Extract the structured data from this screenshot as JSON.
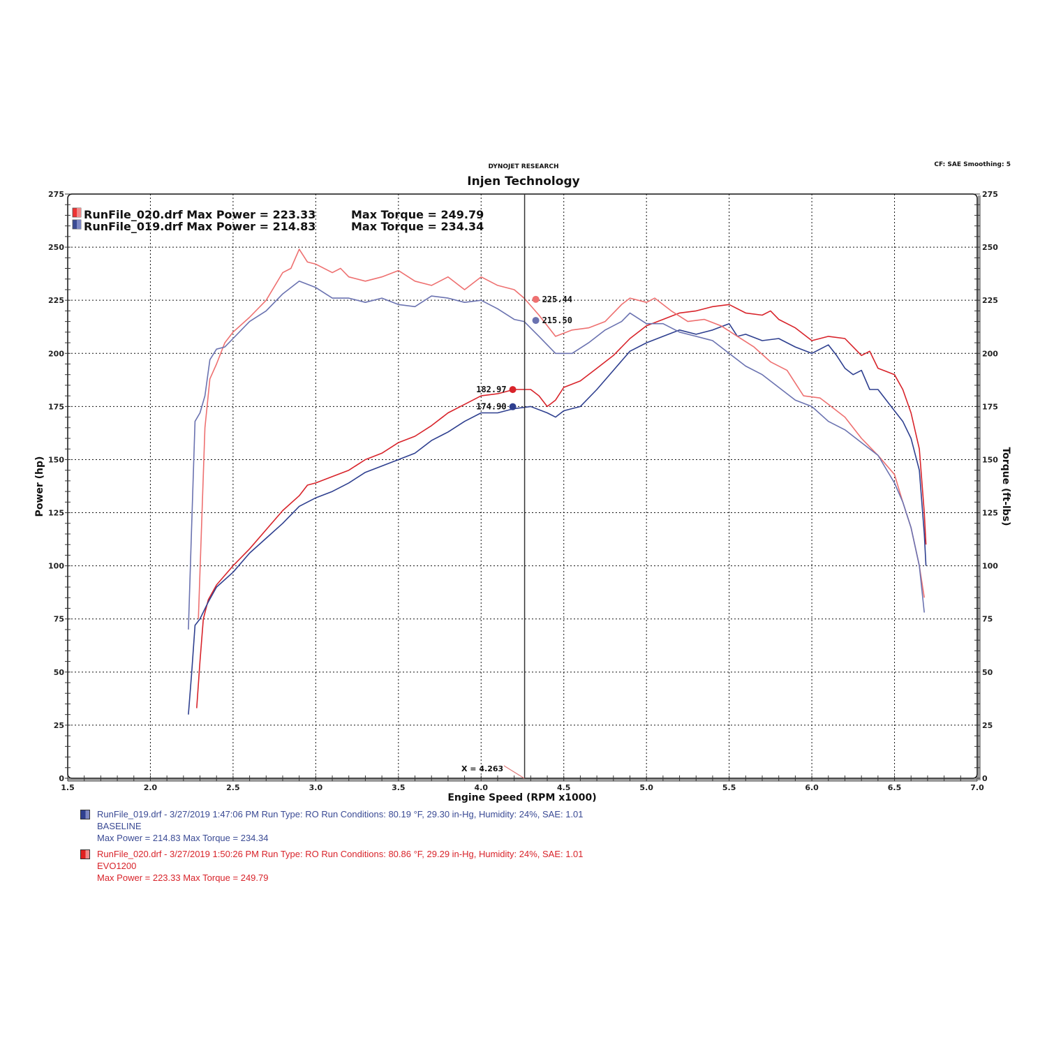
{
  "header": {
    "subtitle": "DYNOJET RESEARCH",
    "title": "Injen Technology",
    "cf_info": "CF: SAE  Smoothing: 5"
  },
  "colors": {
    "red_power": "#d8232a",
    "red_torque": "#ee7070",
    "blue_power": "#2e3f8f",
    "blue_torque": "#6a72b0",
    "grid": "#111111",
    "axis": "#555555"
  },
  "legend_top": [
    {
      "file": "RunFile_020.drf",
      "text": "RunFile_020.drf Max Power = 223.33",
      "torque_text": "Max Torque = 249.79",
      "color": "#d8232a"
    },
    {
      "file": "RunFile_019.drf",
      "text": "RunFile_019.drf Max Power = 214.83",
      "torque_text": "Max Torque = 234.34",
      "color": "#3a4a94"
    }
  ],
  "cursor": {
    "label": "X = 4.263",
    "x": 4.263
  },
  "markers": [
    {
      "label": "225.44",
      "value": 225.44,
      "series": "EVO1200 Torque",
      "color": "#ee7070",
      "side": "right"
    },
    {
      "label": "215.50",
      "value": 215.5,
      "series": "BASELINE Torque",
      "color": "#6a72b0",
      "side": "right"
    },
    {
      "label": "182.97",
      "value": 182.97,
      "series": "EVO1200 Power",
      "color": "#d8232a",
      "side": "left"
    },
    {
      "label": "174.90",
      "value": 174.9,
      "series": "BASELINE Power",
      "color": "#2e3f8f",
      "side": "left"
    }
  ],
  "run_notes": [
    {
      "line1": "RunFile_019.drf - 3/27/2019 1:47:06 PM  Run Type: RO  Run Conditions: 80.19 °F, 29.30 in-Hg,  Humidity:  24%, SAE: 1.01",
      "line2": "BASELINE",
      "line3": "Max Power = 214.83  Max Torque = 234.34",
      "color": "blue"
    },
    {
      "line1": "RunFile_020.drf - 3/27/2019 1:50:26 PM  Run Type: RO  Run Conditions: 80.86 °F, 29.29 in-Hg,  Humidity:  24%, SAE: 1.01",
      "line2": "EVO1200",
      "line3": "Max Power = 223.33  Max Torque = 249.79",
      "color": "red"
    }
  ],
  "chart_data": {
    "type": "line",
    "title": "Injen Technology",
    "subtitle": "DYNOJET RESEARCH",
    "xlabel": "Engine Speed (RPM x1000)",
    "ylabel": "Power (hp)",
    "ylabel_right": "Torque (ft-lbs)",
    "xlim": [
      1.5,
      7.0
    ],
    "ylim": [
      0,
      275
    ],
    "xticks": [
      "1.5",
      "2.0",
      "2.5",
      "3.0",
      "3.5",
      "4.0",
      "4.5",
      "5.0",
      "5.5",
      "6.0",
      "6.5",
      "7.0"
    ],
    "yticks": [
      "0",
      "25",
      "50",
      "75",
      "100",
      "125",
      "150",
      "175",
      "200",
      "225",
      "250",
      "275"
    ],
    "grid": true,
    "legend_position": "top-left",
    "series": [
      {
        "name": "RunFile_020.drf EVO1200 Power (hp)",
        "color": "#d8232a",
        "points": [
          [
            2.28,
            33
          ],
          [
            2.3,
            55
          ],
          [
            2.32,
            75
          ],
          [
            2.35,
            84
          ],
          [
            2.4,
            91
          ],
          [
            2.5,
            100
          ],
          [
            2.6,
            108
          ],
          [
            2.7,
            117
          ],
          [
            2.8,
            126
          ],
          [
            2.9,
            133
          ],
          [
            2.95,
            138
          ],
          [
            3.0,
            139
          ],
          [
            3.1,
            142
          ],
          [
            3.2,
            145
          ],
          [
            3.3,
            150
          ],
          [
            3.4,
            153
          ],
          [
            3.5,
            158
          ],
          [
            3.6,
            161
          ],
          [
            3.7,
            166
          ],
          [
            3.8,
            172
          ],
          [
            3.9,
            176
          ],
          [
            4.0,
            180
          ],
          [
            4.1,
            181
          ],
          [
            4.2,
            183
          ],
          [
            4.3,
            183
          ],
          [
            4.35,
            180
          ],
          [
            4.4,
            175
          ],
          [
            4.45,
            178
          ],
          [
            4.5,
            184
          ],
          [
            4.6,
            187
          ],
          [
            4.7,
            193
          ],
          [
            4.8,
            199
          ],
          [
            4.9,
            207
          ],
          [
            5.0,
            213
          ],
          [
            5.1,
            216
          ],
          [
            5.2,
            219
          ],
          [
            5.3,
            220
          ],
          [
            5.4,
            222
          ],
          [
            5.5,
            223
          ],
          [
            5.6,
            219
          ],
          [
            5.7,
            218
          ],
          [
            5.75,
            220
          ],
          [
            5.8,
            216
          ],
          [
            5.9,
            212
          ],
          [
            6.0,
            206
          ],
          [
            6.1,
            208
          ],
          [
            6.2,
            207
          ],
          [
            6.25,
            203
          ],
          [
            6.3,
            199
          ],
          [
            6.35,
            201
          ],
          [
            6.4,
            193
          ],
          [
            6.5,
            190
          ],
          [
            6.55,
            183
          ],
          [
            6.6,
            172
          ],
          [
            6.65,
            155
          ],
          [
            6.68,
            125
          ],
          [
            6.69,
            110
          ]
        ]
      },
      {
        "name": "RunFile_019.drf BASELINE Power (hp)",
        "color": "#2e3f8f",
        "points": [
          [
            2.23,
            30
          ],
          [
            2.25,
            50
          ],
          [
            2.27,
            72
          ],
          [
            2.3,
            75
          ],
          [
            2.35,
            83
          ],
          [
            2.4,
            90
          ],
          [
            2.5,
            97
          ],
          [
            2.6,
            106
          ],
          [
            2.7,
            113
          ],
          [
            2.8,
            120
          ],
          [
            2.9,
            128
          ],
          [
            3.0,
            132
          ],
          [
            3.1,
            135
          ],
          [
            3.2,
            139
          ],
          [
            3.3,
            144
          ],
          [
            3.4,
            147
          ],
          [
            3.5,
            150
          ],
          [
            3.6,
            153
          ],
          [
            3.7,
            159
          ],
          [
            3.8,
            163
          ],
          [
            3.9,
            168
          ],
          [
            4.0,
            172
          ],
          [
            4.1,
            172
          ],
          [
            4.2,
            174
          ],
          [
            4.3,
            175
          ],
          [
            4.4,
            172
          ],
          [
            4.45,
            170
          ],
          [
            4.5,
            173
          ],
          [
            4.6,
            175
          ],
          [
            4.7,
            183
          ],
          [
            4.8,
            192
          ],
          [
            4.9,
            201
          ],
          [
            5.0,
            205
          ],
          [
            5.1,
            208
          ],
          [
            5.2,
            211
          ],
          [
            5.3,
            209
          ],
          [
            5.4,
            211
          ],
          [
            5.5,
            214
          ],
          [
            5.55,
            208
          ],
          [
            5.6,
            209
          ],
          [
            5.7,
            206
          ],
          [
            5.8,
            207
          ],
          [
            5.9,
            203
          ],
          [
            6.0,
            200
          ],
          [
            6.05,
            202
          ],
          [
            6.1,
            204
          ],
          [
            6.15,
            199
          ],
          [
            6.2,
            193
          ],
          [
            6.25,
            190
          ],
          [
            6.3,
            192
          ],
          [
            6.35,
            183
          ],
          [
            6.4,
            183
          ],
          [
            6.5,
            173
          ],
          [
            6.55,
            168
          ],
          [
            6.6,
            160
          ],
          [
            6.65,
            145
          ],
          [
            6.68,
            115
          ],
          [
            6.69,
            100
          ]
        ]
      },
      {
        "name": "RunFile_020.drf EVO1200 Torque (ft-lbs)",
        "color": "#ee7070",
        "points": [
          [
            2.29,
            75
          ],
          [
            2.31,
            120
          ],
          [
            2.33,
            165
          ],
          [
            2.36,
            188
          ],
          [
            2.4,
            195
          ],
          [
            2.45,
            205
          ],
          [
            2.5,
            210
          ],
          [
            2.6,
            217
          ],
          [
            2.7,
            225
          ],
          [
            2.8,
            238
          ],
          [
            2.85,
            240
          ],
          [
            2.9,
            249
          ],
          [
            2.95,
            243
          ],
          [
            3.0,
            242
          ],
          [
            3.1,
            238
          ],
          [
            3.15,
            240
          ],
          [
            3.2,
            236
          ],
          [
            3.3,
            234
          ],
          [
            3.4,
            236
          ],
          [
            3.5,
            239
          ],
          [
            3.6,
            234
          ],
          [
            3.7,
            232
          ],
          [
            3.8,
            236
          ],
          [
            3.9,
            230
          ],
          [
            4.0,
            236
          ],
          [
            4.1,
            232
          ],
          [
            4.2,
            230
          ],
          [
            4.26,
            226
          ],
          [
            4.35,
            218
          ],
          [
            4.45,
            208
          ],
          [
            4.55,
            211
          ],
          [
            4.65,
            212
          ],
          [
            4.75,
            215
          ],
          [
            4.85,
            223
          ],
          [
            4.9,
            226
          ],
          [
            5.0,
            224
          ],
          [
            5.05,
            226
          ],
          [
            5.15,
            220
          ],
          [
            5.25,
            215
          ],
          [
            5.35,
            216
          ],
          [
            5.45,
            213
          ],
          [
            5.55,
            208
          ],
          [
            5.65,
            203
          ],
          [
            5.75,
            196
          ],
          [
            5.85,
            192
          ],
          [
            5.95,
            180
          ],
          [
            6.05,
            179
          ],
          [
            6.1,
            176
          ],
          [
            6.2,
            170
          ],
          [
            6.3,
            160
          ],
          [
            6.4,
            152
          ],
          [
            6.5,
            143
          ],
          [
            6.55,
            130
          ],
          [
            6.6,
            118
          ],
          [
            6.65,
            100
          ],
          [
            6.68,
            85
          ]
        ]
      },
      {
        "name": "RunFile_019.drf BASELINE Torque (ft-lbs)",
        "color": "#6a72b0",
        "points": [
          [
            2.23,
            70
          ],
          [
            2.25,
            120
          ],
          [
            2.27,
            168
          ],
          [
            2.3,
            172
          ],
          [
            2.33,
            180
          ],
          [
            2.36,
            197
          ],
          [
            2.4,
            202
          ],
          [
            2.45,
            203
          ],
          [
            2.5,
            207
          ],
          [
            2.6,
            215
          ],
          [
            2.7,
            220
          ],
          [
            2.8,
            228
          ],
          [
            2.9,
            234
          ],
          [
            3.0,
            231
          ],
          [
            3.1,
            226
          ],
          [
            3.2,
            226
          ],
          [
            3.3,
            224
          ],
          [
            3.4,
            226
          ],
          [
            3.5,
            223
          ],
          [
            3.6,
            222
          ],
          [
            3.7,
            227
          ],
          [
            3.8,
            226
          ],
          [
            3.9,
            224
          ],
          [
            4.0,
            225
          ],
          [
            4.1,
            221
          ],
          [
            4.2,
            216
          ],
          [
            4.26,
            215
          ],
          [
            4.35,
            208
          ],
          [
            4.45,
            200
          ],
          [
            4.55,
            200
          ],
          [
            4.65,
            205
          ],
          [
            4.75,
            211
          ],
          [
            4.85,
            215
          ],
          [
            4.9,
            219
          ],
          [
            5.0,
            214
          ],
          [
            5.1,
            214
          ],
          [
            5.2,
            210
          ],
          [
            5.3,
            208
          ],
          [
            5.4,
            206
          ],
          [
            5.5,
            200
          ],
          [
            5.6,
            194
          ],
          [
            5.7,
            190
          ],
          [
            5.8,
            184
          ],
          [
            5.9,
            178
          ],
          [
            6.0,
            175
          ],
          [
            6.1,
            168
          ],
          [
            6.2,
            164
          ],
          [
            6.3,
            158
          ],
          [
            6.4,
            152
          ],
          [
            6.5,
            139
          ],
          [
            6.55,
            130
          ],
          [
            6.6,
            118
          ],
          [
            6.65,
            100
          ],
          [
            6.68,
            78
          ]
        ]
      }
    ],
    "annotations": [
      {
        "text": "X = 4.263",
        "x": 4.263
      },
      {
        "text": "225.44",
        "series": "EVO1200 Torque"
      },
      {
        "text": "215.50",
        "series": "BASELINE Torque"
      },
      {
        "text": "182.97",
        "series": "EVO1200 Power"
      },
      {
        "text": "174.90",
        "series": "BASELINE Power"
      }
    ]
  }
}
